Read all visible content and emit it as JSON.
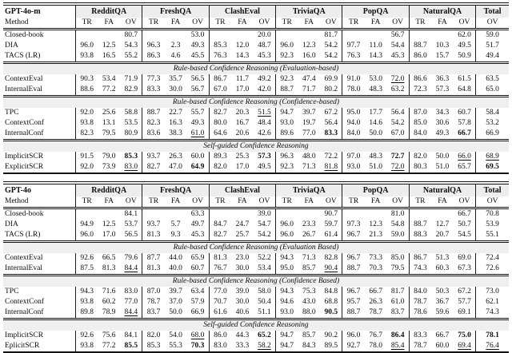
{
  "colors": {
    "rule": "#121212",
    "section_band_bg": "#efefef",
    "group_header_bg": "#ededed",
    "text": "#0d0d0d",
    "background": "#ffffff"
  },
  "columns": {
    "method_label": "Method",
    "groups": [
      {
        "label": "RedditQA",
        "cols": [
          "TR",
          "FA",
          "OV"
        ]
      },
      {
        "label": "FreshQA",
        "cols": [
          "TR",
          "FA",
          "OV"
        ]
      },
      {
        "label": "ClashEval",
        "cols": [
          "TR",
          "FA",
          "OV"
        ]
      },
      {
        "label": "TriviaQA",
        "cols": [
          "TR",
          "FA",
          "OV"
        ]
      },
      {
        "label": "PopQA",
        "cols": [
          "TR",
          "FA",
          "OV"
        ]
      },
      {
        "label": "NaturalQA",
        "cols": [
          "TR",
          "FA",
          "OV"
        ]
      },
      {
        "label": "Total",
        "cols": [
          "OV"
        ]
      }
    ]
  },
  "tables": [
    {
      "model": "GPT-4o-m",
      "rows": [
        {
          "type": "data",
          "label": "Closed-book",
          "cells": [
            "",
            "",
            "80.7",
            "",
            "",
            "53.0",
            "",
            "",
            "20.0",
            "",
            "",
            "81.7",
            "",
            "",
            "56.7",
            "",
            "",
            "62.0",
            "59.0"
          ]
        },
        {
          "type": "data",
          "label": "DIA",
          "cells": [
            "96.0",
            "12.5",
            "54.3",
            "96.3",
            "2.3",
            "49.3",
            "85.3",
            "12.0",
            "48.7",
            "96.0",
            "12.3",
            "54.2",
            "97.7",
            "11.0",
            "54.4",
            "88.7",
            "10.3",
            "49.5",
            "51.7"
          ]
        },
        {
          "type": "data",
          "label": "TACS (LR)",
          "cells": [
            "93.8",
            "16.5",
            "55.2",
            "86.3",
            "4.6",
            "45.5",
            "76.3",
            "14.3",
            "45.3",
            "92.3",
            "16.0",
            "54.2",
            "76.3",
            "14.3",
            "45.3",
            "86.0",
            "15.7",
            "50.9",
            "49.4"
          ]
        },
        {
          "type": "section",
          "text": "Rule-based Confidence Reasoning (Evaluation-based)"
        },
        {
          "type": "data",
          "label": "ContextEval",
          "cells": [
            "90.3",
            "53.4",
            "71.9",
            "77.3",
            "35.7",
            "56.5",
            "86.7",
            "11.7",
            "49.2",
            "92.3",
            "47.4",
            "69.9",
            "91.0",
            "53.0",
            {
              "t": "72.0",
              "f": "u"
            },
            "86.6",
            "36.3",
            "61.5",
            "63.5"
          ]
        },
        {
          "type": "data",
          "label": "InternalEval",
          "cells": [
            "88.6",
            "77.2",
            "82.9",
            "83.3",
            "30.0",
            "56.7",
            "67.0",
            "17.0",
            "42.0",
            "88.7",
            "71.7",
            "80.2",
            "78.0",
            "48.3",
            "63.2",
            "72.3",
            "57.3",
            "64.8",
            "65.0"
          ]
        },
        {
          "type": "section",
          "text": "Rule-based Confidence Reasoning (Confidence-based)"
        },
        {
          "type": "data",
          "label": "TPC",
          "cells": [
            "92.0",
            "25.6",
            "58.8",
            "88.7",
            "22.7",
            "55.7",
            "82.7",
            "20.3",
            {
              "t": "51.5",
              "f": "u"
            },
            "94.7",
            "39.7",
            "67.2",
            "95.0",
            "17.7",
            "56.4",
            "87.0",
            "34.3",
            "60.7",
            "58.4"
          ]
        },
        {
          "type": "data",
          "label": "ContextConf",
          "cells": [
            "93.8",
            "13.1",
            "53.5",
            "82.3",
            "16.3",
            "49.3",
            "80.0",
            "16.7",
            "48.4",
            "93.0",
            "19.7",
            "56.4",
            "94.0",
            "14.6",
            "54.2",
            "85.0",
            "30.6",
            "57.8",
            "53.2"
          ]
        },
        {
          "type": "data",
          "label": "InternalConf",
          "cells": [
            "82.3",
            "79.5",
            "80.9",
            "83.6",
            "38.3",
            {
              "t": "61.0",
              "f": "u"
            },
            "64.6",
            "20.6",
            "42.6",
            "89.6",
            "77.0",
            {
              "t": "83.3",
              "f": "b"
            },
            "84.0",
            "50.0",
            "67.0",
            "84.0",
            "49.3",
            {
              "t": "66.7",
              "f": "b"
            },
            "66.9"
          ]
        },
        {
          "type": "section",
          "text": "Self-guided Confidence Reasoning"
        },
        {
          "type": "data",
          "label": "ImplicitSCR",
          "cells": [
            "91.5",
            "79.0",
            {
              "t": "85.3",
              "f": "b"
            },
            "93.7",
            "26.3",
            "60.0",
            "89.3",
            "25.3",
            {
              "t": "57.3",
              "f": "b"
            },
            "96.3",
            "48.0",
            "72.2",
            "97.0",
            "48.3",
            {
              "t": "72.7",
              "f": "b"
            },
            "82.0",
            "50.0",
            {
              "t": "66.0",
              "f": "u"
            },
            {
              "t": "68.9",
              "f": "u"
            }
          ]
        },
        {
          "type": "data",
          "label": "ExplicitSCR",
          "cells": [
            "92.0",
            "73.9",
            {
              "t": "83.0",
              "f": "u"
            },
            "82.7",
            "47.0",
            {
              "t": "64.9",
              "f": "b"
            },
            "82.0",
            "17.0",
            "49.5",
            "92.3",
            "71.3",
            {
              "t": "81.8",
              "f": "u"
            },
            "93.0",
            "51.0",
            {
              "t": "72.0",
              "f": "u"
            },
            "80.3",
            "51.0",
            "65.7",
            {
              "t": "69.5",
              "f": "b"
            }
          ]
        }
      ]
    },
    {
      "model": "GPT-4o",
      "rows": [
        {
          "type": "data",
          "label": "Closed-book",
          "cells": [
            "",
            "",
            "84.1",
            "",
            "",
            "63.3",
            "",
            "",
            "39.0",
            "",
            "",
            "90.7",
            "",
            "",
            "81.0",
            "",
            "",
            "66.7",
            "70.8"
          ]
        },
        {
          "type": "data",
          "label": "DIA",
          "cells": [
            "94.9",
            "12.5",
            "53.7",
            "93.7",
            "5.7",
            "49.7",
            "84.7",
            "24.7",
            "54.7",
            "96.0",
            "23.3",
            "59.7",
            "97.3",
            "12.3",
            "54.8",
            "88.7",
            "12.7",
            "50.7",
            "53.9"
          ]
        },
        {
          "type": "data",
          "label": "TACS (LR)",
          "cells": [
            "96.0",
            "17.0",
            "56.5",
            "81.3",
            "9.3",
            "45.3",
            "82.7",
            "25.7",
            "54.2",
            "96.0",
            "26.7",
            "61.4",
            "96.7",
            "21.3",
            "59.0",
            "88.3",
            "20.7",
            "54.5",
            "55.1"
          ]
        },
        {
          "type": "section",
          "text": "Rule-based Confidence Reasoning (Evaluation Based)"
        },
        {
          "type": "data",
          "label": "ContextEval",
          "cells": [
            "92.6",
            "66.5",
            "79.6",
            "87.7",
            "44.0",
            "65.9",
            "81.3",
            "23.0",
            "52.2",
            "94.3",
            "71.3",
            "82.8",
            "96.7",
            "73.3",
            "85.0",
            "86.7",
            "51.3",
            "69.0",
            "72.4"
          ]
        },
        {
          "type": "data",
          "label": "InternalEval",
          "cells": [
            "87.5",
            "81.3",
            {
              "t": "84.4",
              "f": "u"
            },
            "81.3",
            "40.0",
            "60.7",
            "76.7",
            "30.0",
            "53.4",
            "95.0",
            "85.7",
            {
              "t": "90.4",
              "f": "u"
            },
            "88.7",
            "70.3",
            "79.5",
            "74.3",
            "60.3",
            "67.3",
            "72.6"
          ]
        },
        {
          "type": "section",
          "text": "Rule-based Confidence Reasoning (Confidence Based)"
        },
        {
          "type": "data",
          "label": "TPC",
          "cells": [
            "94.3",
            "71.6",
            "83.0",
            "87.0",
            "39.7",
            "63.4",
            "77.0",
            "39.0",
            "58.0",
            "94.3",
            "75.3",
            "84.8",
            "96.7",
            "66.7",
            "81.7",
            "84.0",
            "50.3",
            "67.2",
            "73.0"
          ]
        },
        {
          "type": "data",
          "label": "ContextConf",
          "cells": [
            "93.8",
            "60.2",
            "77.0",
            "78.7",
            "37.0",
            "57.9",
            "70.7",
            "30.0",
            "50.4",
            "94.6",
            "43.0",
            "68.8",
            "95.7",
            "26.3",
            "61.0",
            "78.7",
            "36.7",
            "57.7",
            "62.1"
          ]
        },
        {
          "type": "data",
          "label": "InternalConf",
          "cells": [
            "89.8",
            "78.9",
            {
              "t": "84.4",
              "f": "u"
            },
            "83.7",
            "50.0",
            "66.9",
            "61.6",
            "40.6",
            "51.1",
            "93.0",
            "88.0",
            {
              "t": "90.5",
              "f": "b"
            },
            "88.7",
            "78.7",
            "83.7",
            "78.6",
            "59.6",
            "69.1",
            "74.3"
          ]
        },
        {
          "type": "section",
          "text": "Self-guided Confidence Reasoning"
        },
        {
          "type": "data",
          "label": "ImplicitSCR",
          "cells": [
            "92.6",
            "75.6",
            "84.1",
            "82.0",
            "54.0",
            {
              "t": "68.0",
              "f": "u"
            },
            "86.0",
            "44.3",
            {
              "t": "65.2",
              "f": "b"
            },
            "94.7",
            "85.7",
            "90.2",
            "96.0",
            "76.7",
            {
              "t": "86.4",
              "f": "b"
            },
            "83.3",
            "66.7",
            {
              "t": "75.0",
              "f": "b"
            },
            {
              "t": "78.1",
              "f": "b"
            }
          ]
        },
        {
          "type": "data",
          "label": "EplicitSCR",
          "cells": [
            "93.8",
            "77.2",
            {
              "t": "85.5",
              "f": "b"
            },
            "85.3",
            "55.3",
            {
              "t": "70.3",
              "f": "b"
            },
            "83.0",
            "33.3",
            {
              "t": "58.2",
              "f": "u"
            },
            "94.7",
            "84.3",
            "89.5",
            "92.7",
            "78.0",
            {
              "t": "85.4",
              "f": "u"
            },
            "78.7",
            "60.0",
            {
              "t": "69.4",
              "f": "u"
            },
            {
              "t": "76.4",
              "f": "u"
            }
          ]
        }
      ]
    }
  ]
}
